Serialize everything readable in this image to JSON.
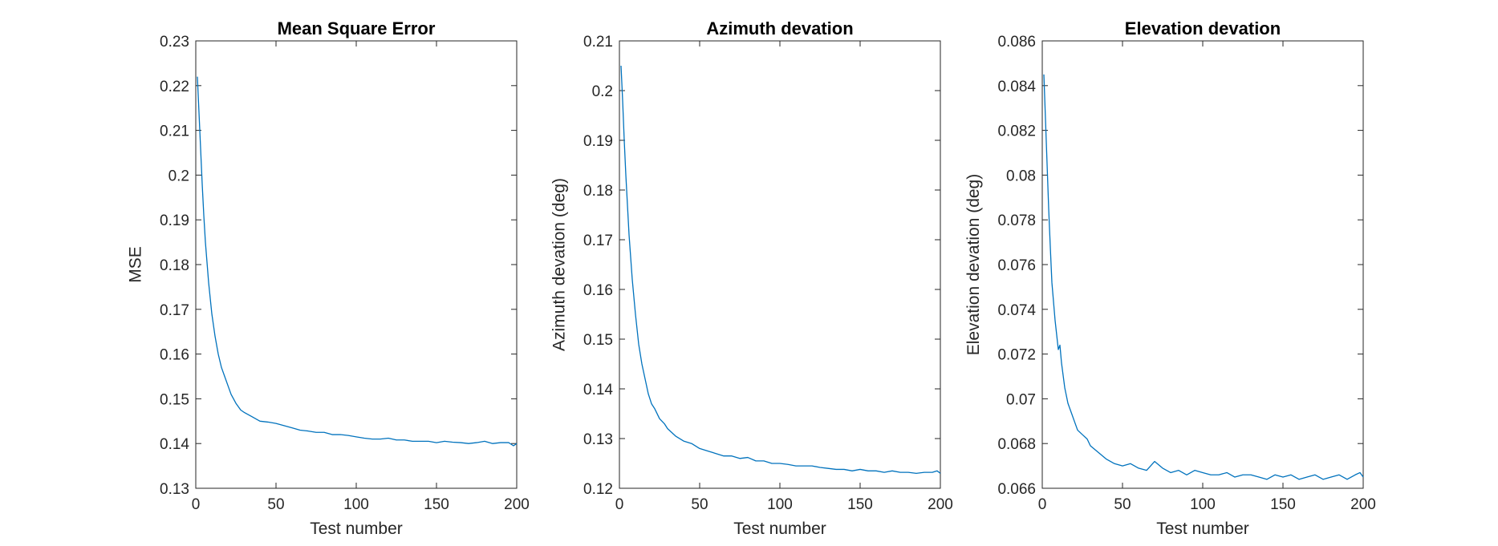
{
  "chart_data": [
    {
      "type": "line",
      "title": "Mean Square Error",
      "xlabel": "Test number",
      "ylabel": "MSE",
      "xlim": [
        0,
        200
      ],
      "ylim": [
        0.13,
        0.23
      ],
      "xticks": [
        0,
        50,
        100,
        150,
        200
      ],
      "xtick_labels": [
        "0",
        "50",
        "100",
        "150",
        "200"
      ],
      "yticks": [
        0.13,
        0.14,
        0.15,
        0.16,
        0.17,
        0.18,
        0.19,
        0.2,
        0.21,
        0.22,
        0.23
      ],
      "ytick_labels": [
        "0.13",
        "0.14",
        "0.15",
        "0.16",
        "0.17",
        "0.18",
        "0.19",
        "0.2",
        "0.21",
        "0.22",
        "0.23"
      ],
      "grid": false,
      "color": "#0072BD",
      "series": [
        {
          "x": [
            1,
            2,
            3,
            4,
            5,
            6,
            8,
            10,
            12,
            14,
            16,
            18,
            20,
            22,
            25,
            28,
            30,
            35,
            40,
            45,
            50,
            55,
            60,
            65,
            70,
            75,
            80,
            85,
            90,
            95,
            100,
            105,
            110,
            115,
            120,
            125,
            130,
            135,
            140,
            145,
            150,
            155,
            160,
            165,
            170,
            175,
            180,
            185,
            190,
            195,
            198,
            200
          ],
          "y": [
            0.222,
            0.214,
            0.206,
            0.198,
            0.191,
            0.185,
            0.176,
            0.169,
            0.164,
            0.16,
            0.157,
            0.155,
            0.153,
            0.151,
            0.149,
            0.1475,
            0.147,
            0.146,
            0.145,
            0.1448,
            0.1445,
            0.144,
            0.1435,
            0.143,
            0.1428,
            0.1425,
            0.1425,
            0.142,
            0.142,
            0.1418,
            0.1415,
            0.1412,
            0.141,
            0.141,
            0.1412,
            0.1408,
            0.1408,
            0.1405,
            0.1405,
            0.1405,
            0.1402,
            0.1405,
            0.1403,
            0.1402,
            0.14,
            0.1402,
            0.1405,
            0.14,
            0.1402,
            0.1402,
            0.1395,
            0.14
          ]
        }
      ]
    },
    {
      "type": "line",
      "title": "Azimuth devation",
      "xlabel": "Test number",
      "ylabel": "Azimuth devation (deg)",
      "xlim": [
        0,
        200
      ],
      "ylim": [
        0.12,
        0.21
      ],
      "xticks": [
        0,
        50,
        100,
        150,
        200
      ],
      "xtick_labels": [
        "0",
        "50",
        "100",
        "150",
        "200"
      ],
      "yticks": [
        0.12,
        0.13,
        0.14,
        0.15,
        0.16,
        0.17,
        0.18,
        0.19,
        0.2,
        0.21
      ],
      "ytick_labels": [
        "0.12",
        "0.13",
        "0.14",
        "0.15",
        "0.16",
        "0.17",
        "0.18",
        "0.19",
        "0.2",
        "0.21"
      ],
      "grid": false,
      "color": "#0072BD",
      "series": [
        {
          "x": [
            1,
            2,
            3,
            4,
            5,
            6,
            8,
            10,
            12,
            14,
            16,
            18,
            20,
            22,
            25,
            28,
            30,
            35,
            40,
            45,
            50,
            55,
            60,
            65,
            70,
            75,
            80,
            85,
            90,
            95,
            100,
            105,
            110,
            115,
            120,
            125,
            130,
            135,
            140,
            145,
            150,
            155,
            160,
            165,
            170,
            175,
            180,
            185,
            190,
            195,
            198,
            200
          ],
          "y": [
            0.205,
            0.198,
            0.19,
            0.183,
            0.177,
            0.171,
            0.162,
            0.155,
            0.149,
            0.145,
            0.142,
            0.139,
            0.137,
            0.136,
            0.134,
            0.133,
            0.132,
            0.1305,
            0.1295,
            0.129,
            0.128,
            0.1275,
            0.127,
            0.1265,
            0.1265,
            0.126,
            0.1262,
            0.1255,
            0.1255,
            0.125,
            0.125,
            0.1248,
            0.1245,
            0.1245,
            0.1245,
            0.1242,
            0.124,
            0.1238,
            0.1238,
            0.1235,
            0.1238,
            0.1235,
            0.1235,
            0.1232,
            0.1235,
            0.1232,
            0.1232,
            0.123,
            0.1232,
            0.1232,
            0.1235,
            0.123
          ]
        }
      ]
    },
    {
      "type": "line",
      "title": "Elevation devation",
      "xlabel": "Test number",
      "ylabel": "Elevation devation (deg)",
      "xlim": [
        0,
        200
      ],
      "ylim": [
        0.066,
        0.086
      ],
      "xticks": [
        0,
        50,
        100,
        150,
        200
      ],
      "xtick_labels": [
        "0",
        "50",
        "100",
        "150",
        "200"
      ],
      "yticks": [
        0.066,
        0.068,
        0.07,
        0.072,
        0.074,
        0.076,
        0.078,
        0.08,
        0.082,
        0.084,
        0.086
      ],
      "ytick_labels": [
        "0.066",
        "0.068",
        "0.07",
        "0.072",
        "0.074",
        "0.076",
        "0.078",
        "0.08",
        "0.082",
        "0.084",
        "0.086"
      ],
      "grid": false,
      "color": "#0072BD",
      "series": [
        {
          "x": [
            1,
            2,
            3,
            4,
            5,
            6,
            8,
            10,
            11,
            12,
            14,
            16,
            18,
            20,
            22,
            25,
            28,
            30,
            35,
            40,
            45,
            50,
            55,
            60,
            65,
            70,
            75,
            80,
            85,
            90,
            95,
            100,
            105,
            110,
            115,
            120,
            125,
            130,
            135,
            140,
            145,
            150,
            155,
            160,
            165,
            170,
            175,
            180,
            185,
            190,
            195,
            198,
            200
          ],
          "y": [
            0.0845,
            0.0825,
            0.0805,
            0.0785,
            0.0768,
            0.0752,
            0.0735,
            0.0722,
            0.0724,
            0.0716,
            0.0705,
            0.0698,
            0.0694,
            0.069,
            0.0686,
            0.0684,
            0.0682,
            0.0679,
            0.0676,
            0.0673,
            0.0671,
            0.067,
            0.0671,
            0.0669,
            0.0668,
            0.0672,
            0.0669,
            0.0667,
            0.0668,
            0.0666,
            0.0668,
            0.0667,
            0.0666,
            0.0666,
            0.0667,
            0.0665,
            0.0666,
            0.0666,
            0.0665,
            0.0664,
            0.0666,
            0.0665,
            0.0666,
            0.0664,
            0.0665,
            0.0666,
            0.0664,
            0.0665,
            0.0666,
            0.0664,
            0.0666,
            0.0667,
            0.0665
          ]
        }
      ]
    }
  ]
}
